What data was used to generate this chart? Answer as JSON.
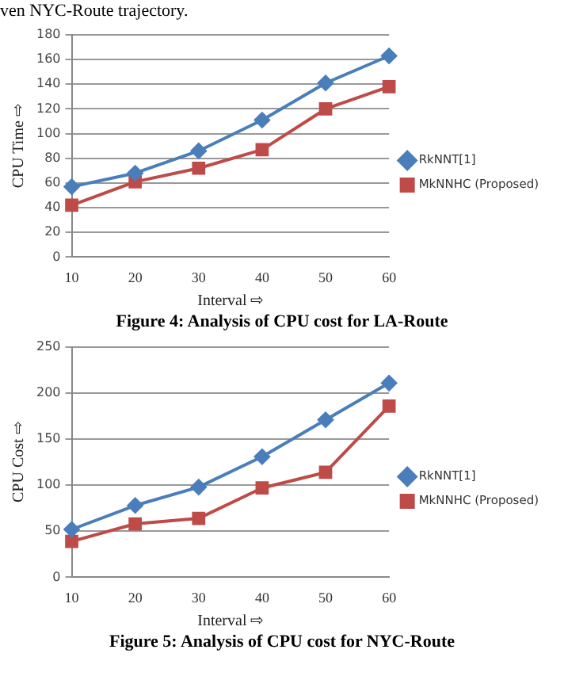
{
  "chart_data": [
    {
      "type": "line",
      "title": "Figure 4: Analysis of CPU cost for LA-Route",
      "xlabel": "Interval ⇨",
      "ylabel": "CPU Time ⇨",
      "annotations": [
        "ven NYC-Route trajectory."
      ],
      "categories": [
        "10",
        "20",
        "30",
        "40",
        "50",
        "60"
      ],
      "ylim": [
        0,
        180
      ],
      "yticks": [
        0,
        20,
        40,
        60,
        80,
        100,
        120,
        140,
        160,
        180
      ],
      "grid": "y",
      "legend": "right",
      "series": [
        {
          "name": "RkNNT[1]",
          "color": "#4a7ebb",
          "marker": "diamond",
          "values": [
            57,
            68,
            86,
            111,
            141,
            163
          ]
        },
        {
          "name": "MkNNHC (Proposed)",
          "color": "#be4b48",
          "marker": "square",
          "values": [
            42,
            61,
            72,
            87,
            120,
            138
          ]
        }
      ]
    },
    {
      "type": "line",
      "title": "Figure 5: Analysis of CPU cost for NYC-Route",
      "xlabel": "Interval ⇨",
      "ylabel": "CPU Cost ⇨",
      "categories": [
        "10",
        "20",
        "30",
        "40",
        "50",
        "60"
      ],
      "ylim": [
        0,
        250
      ],
      "yticks": [
        0,
        50,
        100,
        150,
        200,
        250
      ],
      "grid": "y",
      "legend": "right",
      "series": [
        {
          "name": "RkNNT[1]",
          "color": "#4a7ebb",
          "marker": "diamond",
          "values": [
            52,
            78,
            98,
            131,
            171,
            211
          ]
        },
        {
          "name": "MkNNHC (Proposed)",
          "color": "#be4b48",
          "marker": "square",
          "values": [
            39,
            58,
            64,
            97,
            114,
            186
          ]
        }
      ]
    }
  ]
}
